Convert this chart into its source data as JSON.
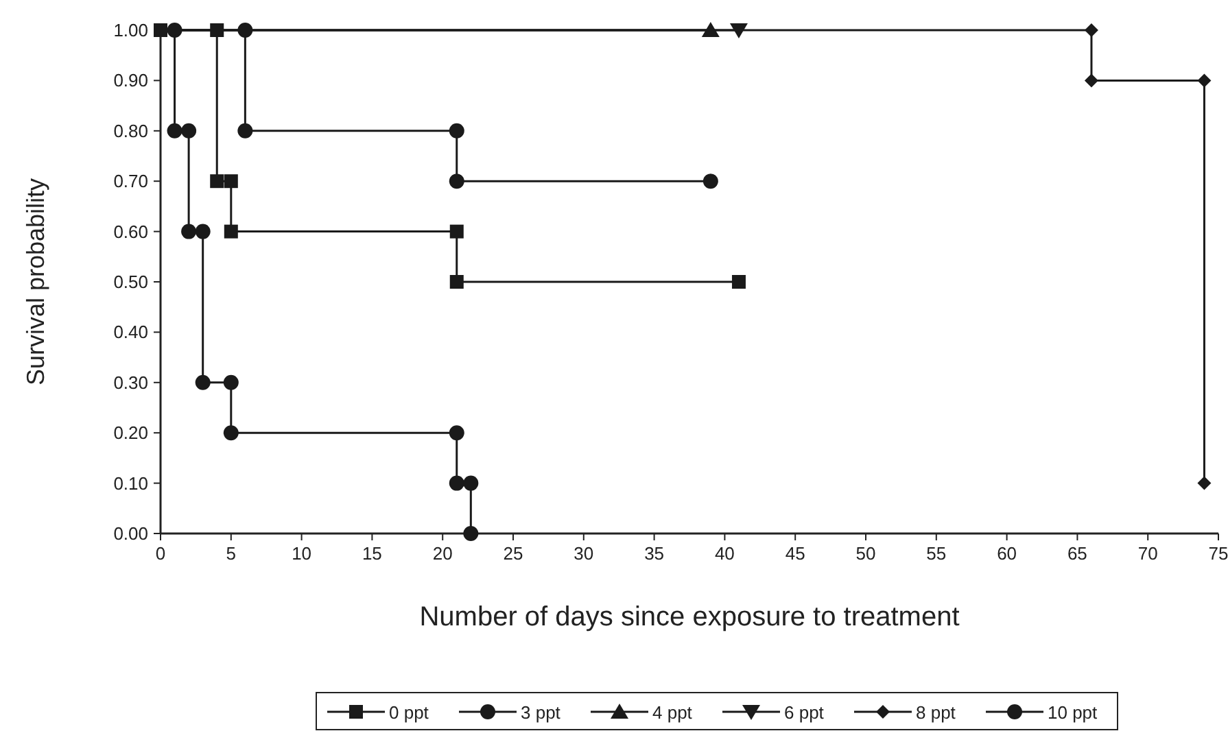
{
  "chart_data": {
    "type": "line",
    "xlabel": "Number of days since exposure to treatment",
    "ylabel": "Survival probability",
    "xlim": [
      0,
      75
    ],
    "xticks": [
      0,
      5,
      10,
      15,
      20,
      25,
      30,
      35,
      40,
      45,
      50,
      55,
      60,
      65,
      70,
      75
    ],
    "ylim": [
      0,
      1
    ],
    "yticks": [
      {
        "value": 0,
        "label": "0.00"
      },
      {
        "value": 0.1,
        "label": "0.10"
      },
      {
        "value": 0.2,
        "label": "0.20"
      },
      {
        "value": 0.3,
        "label": "0.30"
      },
      {
        "value": 0.4,
        "label": "0.40"
      },
      {
        "value": 0.5,
        "label": "0.50"
      },
      {
        "value": 0.6,
        "label": "0.60"
      },
      {
        "value": 0.7,
        "label": "0.70"
      },
      {
        "value": 0.8,
        "label": "0.80"
      },
      {
        "value": 0.9,
        "label": "0.90"
      },
      {
        "value": 1,
        "label": "1.00"
      }
    ],
    "grid": false,
    "legend": "bottom",
    "line_style": "solid",
    "series": [
      {
        "name": "0 ppt",
        "color": "#1a1a1a",
        "marker": "square",
        "x": [
          0,
          4,
          4,
          5,
          5,
          21,
          21,
          41
        ],
        "values": [
          1,
          1,
          0.7,
          0.7,
          0.6,
          0.6,
          0.5,
          0.5
        ]
      },
      {
        "name": "3 ppt",
        "color": "#1a1a1a",
        "marker": "circle",
        "x": [
          0,
          6,
          6,
          21,
          21,
          39
        ],
        "values": [
          1,
          1,
          0.8,
          0.8,
          0.7,
          0.7
        ]
      },
      {
        "name": "4 ppt",
        "color": "#1a1a1a",
        "marker": "triangle",
        "x": [
          0,
          39
        ],
        "values": [
          1,
          1
        ]
      },
      {
        "name": "6 ppt",
        "color": "#1a1a1a",
        "marker": "triangle-down",
        "x": [
          0,
          41
        ],
        "values": [
          1,
          1
        ]
      },
      {
        "name": "8 ppt",
        "color": "#1a1a1a",
        "marker": "diamond",
        "x": [
          0,
          66,
          66,
          74,
          74
        ],
        "values": [
          1,
          1,
          0.9,
          0.9,
          0.1
        ]
      },
      {
        "name": "10 ppt",
        "color": "#1a1a1a",
        "marker": "circle",
        "x": [
          0,
          1,
          1,
          2,
          2,
          3,
          3,
          5,
          5,
          21,
          21,
          22,
          22
        ],
        "values": [
          1,
          1,
          0.8,
          0.8,
          0.6,
          0.6,
          0.3,
          0.3,
          0.2,
          0.2,
          0.1,
          0.1,
          0
        ]
      }
    ]
  }
}
